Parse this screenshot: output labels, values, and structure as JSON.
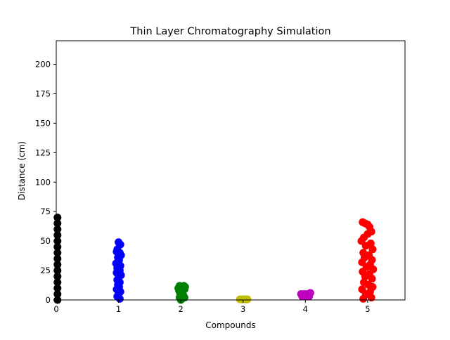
{
  "chart_data": {
    "type": "scatter",
    "title": "Thin Layer Chromatography Simulation",
    "xlabel": "Compounds",
    "ylabel": "Distance (cm)",
    "xlim": [
      0,
      5.6
    ],
    "ylim": [
      0,
      220
    ],
    "xticks": [
      0,
      1,
      2,
      3,
      4,
      5
    ],
    "yticks": [
      0,
      25,
      50,
      75,
      100,
      125,
      150,
      175,
      200
    ],
    "grid": false,
    "series": [
      {
        "color": "#000000",
        "points": [
          [
            0.02,
            0
          ],
          [
            0.02,
            5
          ],
          [
            0.02,
            10
          ],
          [
            0.02,
            15
          ],
          [
            0.02,
            20
          ],
          [
            0.02,
            25
          ],
          [
            0.02,
            30
          ],
          [
            0.02,
            35
          ],
          [
            0.02,
            40
          ],
          [
            0.02,
            45
          ],
          [
            0.02,
            50
          ],
          [
            0.02,
            55
          ],
          [
            0.02,
            60
          ],
          [
            0.02,
            65
          ],
          [
            0.02,
            70
          ]
        ]
      },
      {
        "color": "#0000ff",
        "points": [
          [
            1.0,
            49
          ],
          [
            1.03,
            47
          ],
          [
            0.98,
            43
          ],
          [
            0.97,
            41
          ],
          [
            1.02,
            40
          ],
          [
            1.04,
            38
          ],
          [
            0.99,
            36
          ],
          [
            1.01,
            34
          ],
          [
            0.96,
            31
          ],
          [
            1.03,
            29
          ],
          [
            0.98,
            27
          ],
          [
            1.02,
            25
          ],
          [
            0.97,
            23
          ],
          [
            1.04,
            21
          ],
          [
            1.0,
            19
          ],
          [
            0.98,
            17
          ],
          [
            1.02,
            15
          ],
          [
            0.99,
            13
          ],
          [
            1.01,
            11
          ],
          [
            0.97,
            9
          ],
          [
            1.03,
            7
          ],
          [
            1.0,
            5
          ],
          [
            0.98,
            3
          ],
          [
            1.02,
            1
          ]
        ]
      },
      {
        "color": "#008000",
        "points": [
          [
            1.96,
            10
          ],
          [
            1.98,
            12
          ],
          [
            2.02,
            11
          ],
          [
            2.05,
            12
          ],
          [
            2.07,
            11
          ],
          [
            1.97,
            8
          ],
          [
            2.03,
            7
          ],
          [
            2.06,
            9
          ],
          [
            1.99,
            5
          ],
          [
            2.04,
            4
          ],
          [
            1.98,
            2
          ],
          [
            2.02,
            1
          ],
          [
            2.06,
            2
          ],
          [
            2.0,
            0
          ]
        ]
      },
      {
        "color": "#bfbf00",
        "points": [
          [
            2.95,
            0.5
          ],
          [
            2.98,
            0.5
          ],
          [
            3.0,
            0.5
          ],
          [
            3.02,
            0.5
          ],
          [
            3.05,
            0.5
          ],
          [
            3.07,
            0.5
          ]
        ]
      },
      {
        "color": "#bf00bf",
        "points": [
          [
            3.93,
            5
          ],
          [
            3.96,
            5
          ],
          [
            3.99,
            5
          ],
          [
            4.02,
            5
          ],
          [
            4.05,
            5
          ],
          [
            4.08,
            6
          ],
          [
            3.95,
            3
          ],
          [
            4.0,
            3
          ],
          [
            4.06,
            3
          ]
        ]
      },
      {
        "color": "#ff0000",
        "points": [
          [
            4.92,
            66
          ],
          [
            4.96,
            65
          ],
          [
            5.0,
            64
          ],
          [
            5.03,
            62
          ],
          [
            5.06,
            58
          ],
          [
            5.0,
            56
          ],
          [
            4.94,
            53
          ],
          [
            4.9,
            50
          ],
          [
            5.05,
            48
          ],
          [
            4.97,
            46
          ],
          [
            5.08,
            43
          ],
          [
            4.93,
            40
          ],
          [
            5.02,
            38
          ],
          [
            4.95,
            36
          ],
          [
            5.07,
            34
          ],
          [
            4.91,
            32
          ],
          [
            5.04,
            30
          ],
          [
            4.98,
            28
          ],
          [
            5.09,
            26
          ],
          [
            4.92,
            24
          ],
          [
            5.03,
            22
          ],
          [
            4.96,
            20
          ],
          [
            5.07,
            18
          ],
          [
            4.94,
            15
          ],
          [
            5.01,
            13
          ],
          [
            5.08,
            11
          ],
          [
            4.91,
            9
          ],
          [
            5.04,
            7
          ],
          [
            4.97,
            5
          ],
          [
            5.06,
            2
          ],
          [
            4.93,
            1
          ]
        ]
      }
    ]
  }
}
